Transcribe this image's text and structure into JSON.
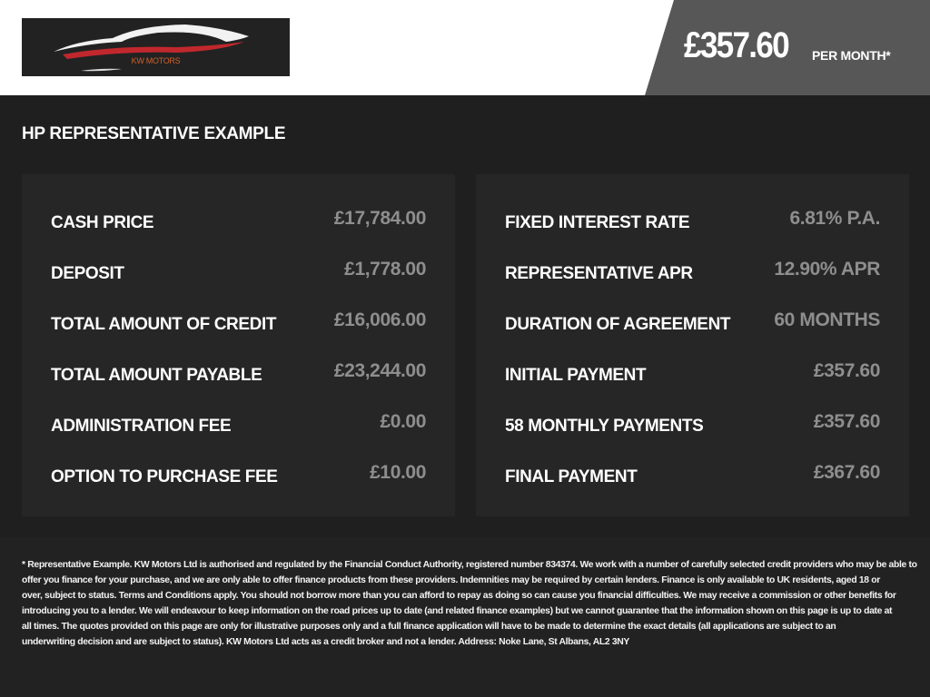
{
  "header": {
    "logo_text": "KW MOTORS",
    "price": "£357.60",
    "price_suffix": "PER MONTH*"
  },
  "colors": {
    "accent_red": "#c0282d",
    "logo_text": "#d2602a",
    "price_bg": "#575757"
  },
  "title": "HP REPRESENTATIVE EXAMPLE",
  "left": [
    {
      "label": "CASH PRICE",
      "value": "£17,784.00"
    },
    {
      "label": "DEPOSIT",
      "value": "£1,778.00"
    },
    {
      "label": "TOTAL AMOUNT OF CREDIT",
      "value": "£16,006.00"
    },
    {
      "label": "TOTAL AMOUNT PAYABLE",
      "value": "£23,244.00"
    },
    {
      "label": "ADMINISTRATION FEE",
      "value": "£0.00"
    },
    {
      "label": "OPTION TO PURCHASE FEE",
      "value": "£10.00"
    }
  ],
  "right": [
    {
      "label": "FIXED INTEREST RATE",
      "value": "6.81% P.A."
    },
    {
      "label": "REPRESENTATIVE APR",
      "value": "12.90% APR"
    },
    {
      "label": "DURATION OF AGREEMENT",
      "value": "60 MONTHS"
    },
    {
      "label": "INITIAL PAYMENT",
      "value": "£357.60"
    },
    {
      "label": "58 MONTHLY PAYMENTS",
      "value": "£357.60"
    },
    {
      "label": "FINAL PAYMENT",
      "value": "£367.60"
    }
  ],
  "footer_lines": [
    "* Representative Example. KW Motors Ltd is authorised and regulated by the Financial Conduct Authority, registered number 834374. We work with a number of carefully selected credit providers who may be able to",
    "offer you finance for your purchase, and we are only able to offer finance products from these providers. Indemnities may be required by certain lenders. Finance is only available to UK residents, aged 18 or",
    "over, subject to status. Terms and Conditions apply. You should not borrow more than you can afford to repay as doing so can cause you financial difficulties. We may receive a commission or other benefits for",
    "introducing you to a lender. We will endeavour to keep information on the road prices up to date (and related finance examples) but we cannot guarantee that the information shown on this page is up to date at",
    "all times. The quotes provided on this page are only for illustrative purposes only and a full finance application will have to be made to determine the exact details (all applications are subject to an",
    "underwriting decision and are subject to status). KW Motors Ltd acts as a credit broker and not a lender. Address: Noke Lane, St Albans, AL2 3NY"
  ]
}
